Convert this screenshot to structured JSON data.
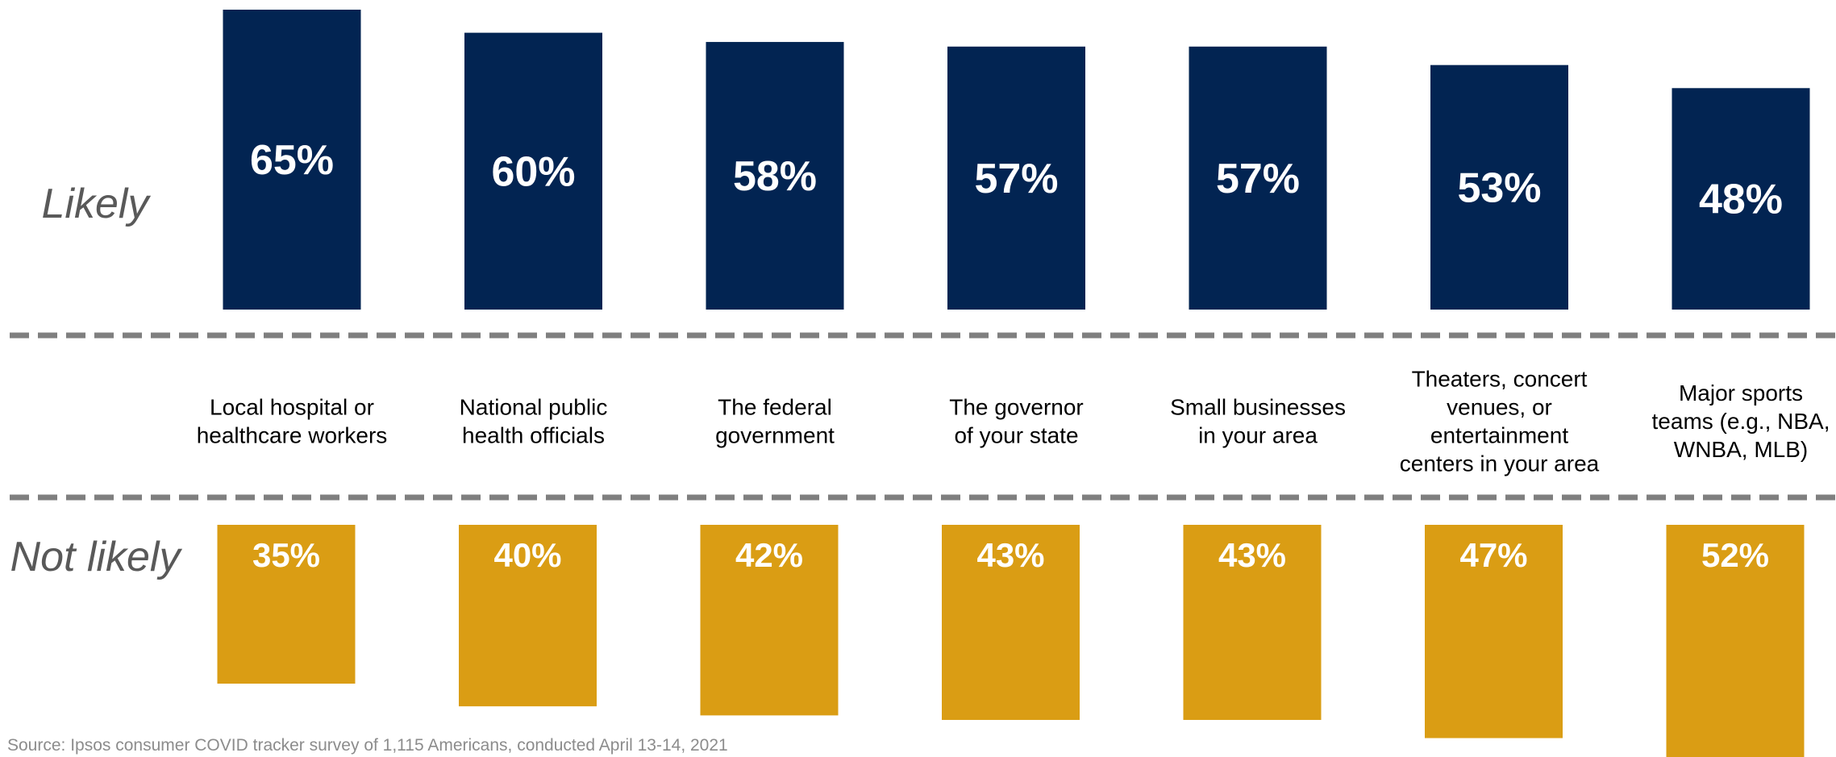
{
  "chart_data": {
    "type": "bar",
    "categories": [
      [
        "Local hospital or",
        "healthcare workers"
      ],
      [
        "National public",
        "health officials"
      ],
      [
        "The federal",
        "government"
      ],
      [
        "The governor",
        "of your state"
      ],
      [
        "Small businesses",
        "in your area"
      ],
      [
        "Theaters, concert",
        "venues, or",
        "entertainment",
        "centers in your area"
      ],
      [
        "Major sports",
        "teams (e.g., NBA,",
        "WNBA, MLB)"
      ]
    ],
    "series": [
      {
        "name": "Likely",
        "values": [
          65,
          60,
          58,
          57,
          57,
          53,
          48
        ],
        "labels": [
          "65%",
          "60%",
          "58%",
          "57%",
          "57%",
          "53%",
          "48%"
        ],
        "color": "#022452"
      },
      {
        "name": "Not likely",
        "values": [
          35,
          40,
          42,
          43,
          43,
          47,
          52
        ],
        "labels": [
          "35%",
          "40%",
          "42%",
          "43%",
          "43%",
          "47%",
          "52%"
        ],
        "color": "#DA9D14"
      }
    ],
    "row_labels": {
      "top": "Likely",
      "bottom": "Not likely"
    },
    "divider_color": "#7f7f7f",
    "grid": false,
    "legend": "none"
  },
  "source": "Source: Ipsos consumer COVID tracker survey of 1,115 Americans, conducted April 13-14, 2021"
}
